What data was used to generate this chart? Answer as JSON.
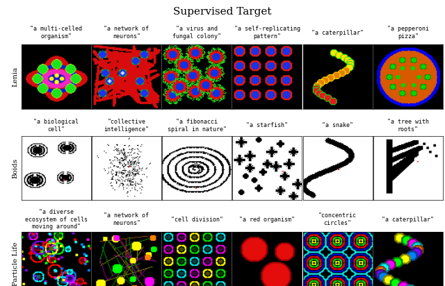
{
  "title": "Supervised Target",
  "row_labels": [
    "Lenia",
    "Boids",
    "Particle Life"
  ],
  "col_labels_row1": [
    "\"a multi-celled\norganism\"",
    "\"a network of\nneurons\"",
    "\"a virus and\nfungal colony\"",
    "\"a self-replicating\npattern\"",
    "\"a caterpillar\"",
    "\"a pepperoni\npizza\""
  ],
  "col_labels_row2": [
    "\"a biological\ncell\"",
    "\"collective\nintelligence\"",
    "\"a fibonacci\nspiral in nature\"",
    "\"a starfish\"",
    "\"a snake\"",
    "\"a tree with\nroots\""
  ],
  "col_labels_row3": [
    "\"a diverse\necosystem of cells\nmoving around\"",
    "\"a network of\nneurons\"",
    "\"cell division\"",
    "\"a red organism\"",
    "\"concentric\ncircles\"",
    "\"a caterpillar\""
  ],
  "title_fontsize": 11,
  "label_fontsize": 6.0,
  "row_label_fontsize": 7.5,
  "bg_color": "#ffffff"
}
